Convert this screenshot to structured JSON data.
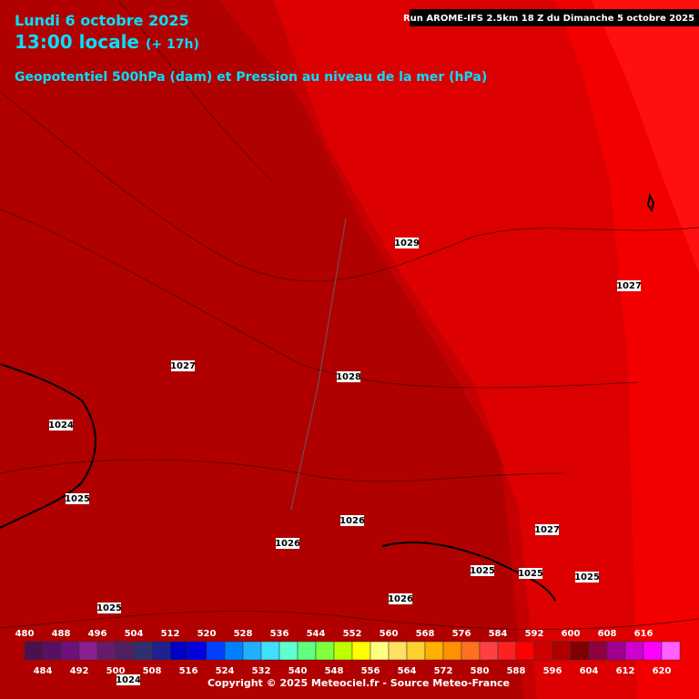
{
  "header": {
    "date": "Lundi 6 octobre 2025",
    "time": "13:00 locale",
    "lead": "(+ 17h)",
    "subtitle": "Geopotentiel 500hPa (dam) et Pression au niveau de la mer (hPa)",
    "run": "Run AROME-IFS 2.5km 18 Z du Dimanche 5 octobre 2025"
  },
  "isobar_labels": [
    "1029",
    "1027",
    "1027",
    "1028",
    "1024",
    "1025",
    "1026",
    "1027",
    "1026",
    "1025",
    "1025",
    "1025",
    "1025",
    "1026",
    "1024"
  ],
  "scale": [
    {
      "value": 480,
      "color": "#4b1050"
    },
    {
      "value": 484,
      "color": "#5a1060"
    },
    {
      "value": 488,
      "color": "#70107a"
    },
    {
      "value": 492,
      "color": "#8a2090"
    },
    {
      "value": 496,
      "color": "#6a1a6a"
    },
    {
      "value": 500,
      "color": "#502060"
    },
    {
      "value": 504,
      "color": "#303070"
    },
    {
      "value": 508,
      "color": "#202090"
    },
    {
      "value": 512,
      "color": "#0000c0"
    },
    {
      "value": 516,
      "color": "#0000e0"
    },
    {
      "value": 520,
      "color": "#0040ff"
    },
    {
      "value": 524,
      "color": "#0080ff"
    },
    {
      "value": 528,
      "color": "#20b0ff"
    },
    {
      "value": 532,
      "color": "#40e0ff"
    },
    {
      "value": 536,
      "color": "#60ffd0"
    },
    {
      "value": 540,
      "color": "#60ff80"
    },
    {
      "value": 544,
      "color": "#80ff40"
    },
    {
      "value": 548,
      "color": "#c0ff00"
    },
    {
      "value": 552,
      "color": "#ffff00"
    },
    {
      "value": 556,
      "color": "#ffff80"
    },
    {
      "value": 560,
      "color": "#ffe060"
    },
    {
      "value": 564,
      "color": "#ffd030"
    },
    {
      "value": 568,
      "color": "#ffb000"
    },
    {
      "value": 572,
      "color": "#ff9000"
    },
    {
      "value": 576,
      "color": "#ff7020"
    },
    {
      "value": 580,
      "color": "#ff4040"
    },
    {
      "value": 584,
      "color": "#ff2020"
    },
    {
      "value": 588,
      "color": "#ff0000"
    },
    {
      "value": 592,
      "color": "#d00000"
    },
    {
      "value": 596,
      "color": "#b00000"
    },
    {
      "value": 600,
      "color": "#800000"
    },
    {
      "value": 604,
      "color": "#900040"
    },
    {
      "value": 608,
      "color": "#a00090"
    },
    {
      "value": 612,
      "color": "#d000d0"
    },
    {
      "value": 616,
      "color": "#ff00ff"
    },
    {
      "value": 620,
      "color": "#ff60ff"
    }
  ],
  "copyright": "Copyright © 2025 Meteociel.fr - Source Meteo-France"
}
